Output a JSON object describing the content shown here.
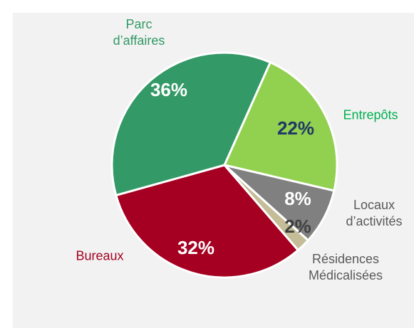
{
  "chart_data": {
    "type": "pie",
    "categories": [
      "Entrepôts",
      "Locaux d’activités",
      "Résidences Médicalisées",
      "Bureaux",
      "Parc d’affaires"
    ],
    "values": [
      22,
      8,
      2,
      32,
      36
    ],
    "value_labels": [
      "22%",
      "8%",
      "2%",
      "32%",
      "36%"
    ],
    "colors": [
      "#92d050",
      "#808080",
      "#c4bd97",
      "#a50021",
      "#339966"
    ]
  }
}
